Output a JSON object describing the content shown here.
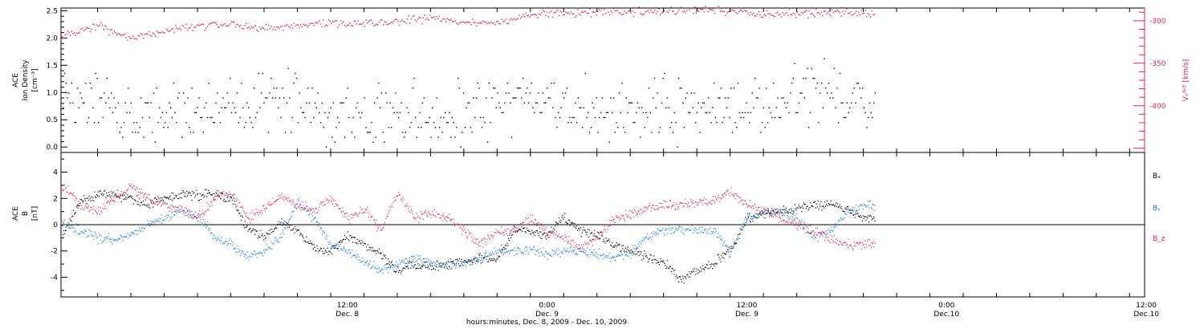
{
  "colors": {
    "ink": "#000000",
    "speed": "#e0245e",
    "by": "#1a7fd6",
    "bz": "#e0245e"
  },
  "chart_data": [
    {
      "type": "scatter",
      "panel": "top",
      "ylabel_lines": [
        "ACE",
        "Ion Density",
        "[cm⁻³]"
      ],
      "y2label": "Vₓᴬᶜᴱ [km/s]",
      "ylim": [
        -0.1,
        2.55
      ],
      "yticks": [
        "0.0",
        "0.5",
        "1.0",
        "1.5",
        "2.0",
        "2.5"
      ],
      "ytick_values": [
        0.0,
        0.5,
        1.0,
        1.5,
        2.0,
        2.5
      ],
      "y2lim": [
        -455,
        -285
      ],
      "y2ticks": [
        "-300",
        "-350",
        "-400"
      ],
      "y2tick_values": [
        -300,
        -350,
        -400
      ],
      "xlim_hours": [
        -5.2,
        59.9
      ],
      "data_end_hour": 43.7,
      "series": [
        {
          "name": "",
          "color": "#000000",
          "x": [
            -5,
            -3,
            -1,
            1,
            3,
            5,
            7,
            9,
            11,
            13,
            15,
            17,
            19,
            21,
            23,
            25,
            27,
            29,
            31,
            33,
            35,
            37,
            39,
            41,
            43
          ],
          "y": [
            0.7,
            0.8,
            0.6,
            0.55,
            0.7,
            0.75,
            0.8,
            0.8,
            0.55,
            0.5,
            0.6,
            0.5,
            0.55,
            0.75,
            0.85,
            0.75,
            0.6,
            0.55,
            0.7,
            0.65,
            0.75,
            0.8,
            0.95,
            1.0,
            0.8
          ]
        },
        {
          "name": "",
          "axis": "right",
          "color": "#e0245e",
          "x": [
            -5,
            -3,
            -1,
            1,
            3,
            5,
            7,
            9,
            11,
            13,
            15,
            17,
            19,
            21,
            23,
            25,
            27,
            29,
            31,
            33,
            35,
            37,
            39,
            41,
            43
          ],
          "y": [
            -318,
            -305,
            -322,
            -312,
            -306,
            -304,
            -309,
            -306,
            -302,
            -304,
            -300,
            -297,
            -303,
            -302,
            -294,
            -291,
            -290,
            -290,
            -288,
            -286,
            -289,
            -292,
            -292,
            -290,
            -292
          ]
        }
      ]
    },
    {
      "type": "line",
      "panel": "bottom",
      "ylabel_lines": [
        "ACE",
        "B",
        "[nT]"
      ],
      "ylim": [
        -5.5,
        5.5
      ],
      "yticks": [
        "-4",
        "-2",
        "0",
        "2",
        "4"
      ],
      "ytick_values": [
        -4,
        -2,
        0,
        2,
        4
      ],
      "xlim_hours": [
        -5.2,
        59.9
      ],
      "xticks": [
        "12:00",
        "0:00",
        "12:00",
        "0:00",
        "12:00"
      ],
      "xtick_values": [
        12,
        24,
        36,
        48,
        60
      ],
      "xtick_sublabels": [
        "Dec. 8",
        "Dec. 9",
        "Dec. 9",
        "Dec.10",
        "Dec.10"
      ],
      "xlabel": "hours:minutes, Dec. 8, 2009 - Dec. 10, 2009",
      "series": [
        {
          "name": "Bₓ",
          "color": "#000000",
          "x": [
            -5,
            -4,
            -3,
            -2,
            -1,
            0,
            1,
            2,
            3,
            4,
            5,
            6,
            7,
            8,
            9,
            10,
            11,
            12,
            13,
            14,
            15,
            16,
            17,
            18,
            19,
            20,
            21,
            22,
            23,
            24,
            25,
            26,
            27,
            28,
            29,
            30,
            31,
            32,
            33,
            34,
            35,
            36,
            37,
            38,
            39,
            40,
            41,
            42,
            43
          ],
          "y": [
            -0.5,
            1.8,
            2.2,
            2.3,
            2.0,
            1.5,
            2.0,
            2.2,
            2.3,
            2.3,
            2.0,
            -0.3,
            -1.0,
            0.2,
            -0.5,
            -1.8,
            -2.0,
            -0.8,
            -1.5,
            -2.2,
            -3.5,
            -3.0,
            -3.2,
            -3.0,
            -2.8,
            -2.5,
            -2.8,
            -0.3,
            -0.5,
            -0.8,
            0.5,
            -0.5,
            -0.8,
            -1.5,
            -2.0,
            -2.5,
            -2.8,
            -4.2,
            -3.5,
            -3.0,
            -2.0,
            0.5,
            0.8,
            1.0,
            1.3,
            1.5,
            1.6,
            1.2,
            0.5
          ]
        },
        {
          "name": "Bᵧ",
          "color": "#1a7fd6",
          "x": [
            -5,
            -4,
            -3,
            -2,
            -1,
            0,
            1,
            2,
            3,
            4,
            5,
            6,
            7,
            8,
            9,
            10,
            11,
            12,
            13,
            14,
            15,
            16,
            17,
            18,
            19,
            20,
            21,
            22,
            23,
            24,
            25,
            26,
            27,
            28,
            29,
            30,
            31,
            32,
            33,
            34,
            35,
            36,
            37,
            38,
            39,
            40,
            41,
            42,
            43
          ],
          "y": [
            0.2,
            -0.5,
            -1.0,
            -1.2,
            -0.8,
            0.0,
            0.5,
            1.0,
            0.8,
            -1.0,
            -1.5,
            -2.5,
            -2.0,
            -1.0,
            1.8,
            0.5,
            -1.5,
            -2.0,
            -2.8,
            -3.5,
            -3.0,
            -2.5,
            -3.0,
            -3.2,
            -3.0,
            -2.5,
            -2.0,
            -2.0,
            -2.0,
            -2.2,
            -2.0,
            -2.0,
            -2.3,
            -2.5,
            -2.2,
            -1.0,
            -0.5,
            -0.3,
            -0.5,
            -0.5,
            -2.0,
            0.5,
            1.0,
            1.0,
            0.5,
            -1.0,
            -0.5,
            0.8,
            1.5
          ]
        },
        {
          "name": "B_z",
          "color": "#e0245e",
          "x": [
            -5,
            -4,
            -3,
            -2,
            -1,
            0,
            1,
            2,
            3,
            4,
            5,
            6,
            7,
            8,
            9,
            10,
            11,
            12,
            13,
            14,
            15,
            16,
            17,
            18,
            19,
            20,
            21,
            22,
            23,
            24,
            25,
            26,
            27,
            28,
            29,
            30,
            31,
            32,
            33,
            34,
            35,
            36,
            37,
            38,
            39,
            40,
            41,
            42,
            43
          ],
          "y": [
            2.8,
            1.5,
            1.0,
            2.0,
            3.0,
            2.0,
            1.5,
            1.2,
            0.5,
            2.0,
            2.5,
            0.5,
            1.2,
            2.2,
            1.5,
            1.0,
            2.0,
            0.5,
            1.2,
            -0.5,
            2.5,
            0.5,
            0.8,
            0.5,
            -0.5,
            -1.5,
            -0.5,
            -0.5,
            0.5,
            -0.5,
            -1.0,
            -1.8,
            -1.0,
            0.5,
            0.8,
            1.3,
            1.5,
            1.5,
            1.7,
            1.8,
            2.5,
            1.5,
            1.2,
            0.5,
            0.0,
            -0.5,
            -1.0,
            -1.5,
            -1.5
          ]
        }
      ]
    }
  ]
}
